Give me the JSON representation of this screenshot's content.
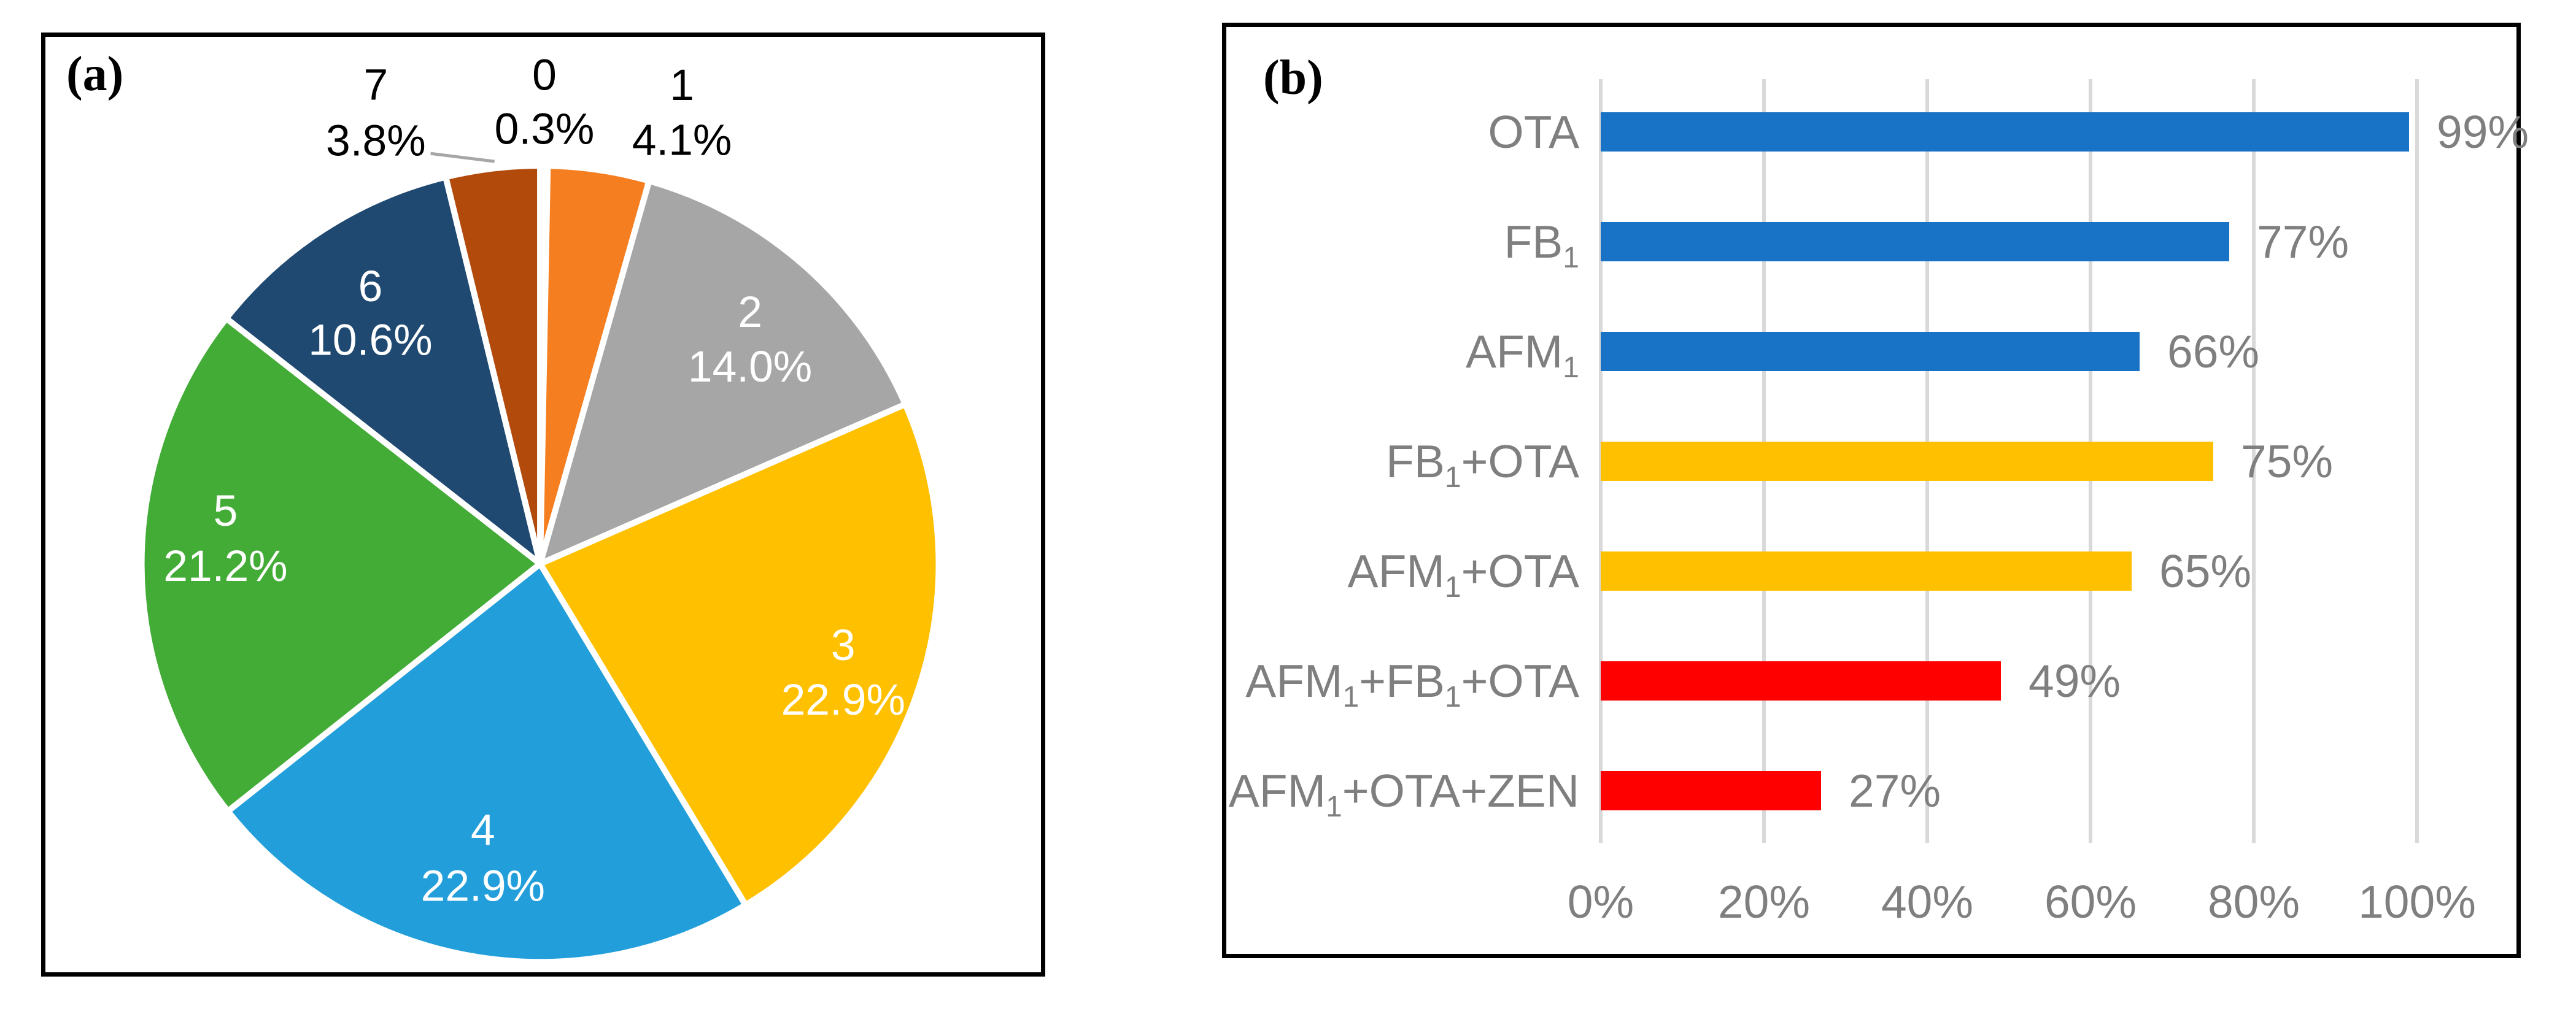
{
  "figure": {
    "panel_a": {
      "tag": "(a)"
    },
    "panel_b": {
      "tag": "(b)"
    }
  },
  "chart_data": [
    {
      "type": "pie",
      "panel": "a",
      "title": "",
      "direction": "clockwise",
      "start_angle_deg": 0,
      "slice_border_color": "#FFFFFF",
      "inside_label_color": "#FFFFFF",
      "outside_label_color": "#000000",
      "leader_line_color": "#A6A6A6",
      "slices": [
        {
          "label": "0",
          "value": 0.3,
          "pct_text": "0.3%",
          "color": "#FFFFFF",
          "label_placement": "outside"
        },
        {
          "label": "1",
          "value": 4.1,
          "pct_text": "4.1%",
          "color": "#F47E20",
          "label_placement": "outside"
        },
        {
          "label": "2",
          "value": 14.0,
          "pct_text": "14.0%",
          "color": "#A6A6A6",
          "label_placement": "inside"
        },
        {
          "label": "3",
          "value": 22.9,
          "pct_text": "22.9%",
          "color": "#FFC000",
          "label_placement": "inside"
        },
        {
          "label": "4",
          "value": 22.9,
          "pct_text": "22.9%",
          "color": "#229FDA",
          "label_placement": "inside"
        },
        {
          "label": "5",
          "value": 21.2,
          "pct_text": "21.2%",
          "color": "#43AC37",
          "label_placement": "inside"
        },
        {
          "label": "6",
          "value": 10.6,
          "pct_text": "10.6%",
          "color": "#1F4971",
          "label_placement": "inside"
        },
        {
          "label": "7",
          "value": 3.8,
          "pct_text": "3.8%",
          "color": "#B24A0C",
          "label_placement": "outside"
        }
      ]
    },
    {
      "type": "bar",
      "panel": "b",
      "title": "",
      "orientation": "horizontal",
      "x_range": [
        0,
        100
      ],
      "x_ticks": [
        "0%",
        "20%",
        "40%",
        "60%",
        "80%",
        "100%"
      ],
      "grid": true,
      "gridline_color": "#D9D9D9",
      "text_color": "#7F7F7F",
      "bars": [
        {
          "category": "OTA",
          "value": 99,
          "value_label": "99%",
          "color": "#1872C5"
        },
        {
          "category": "FB₁",
          "value": 77,
          "value_label": "77%",
          "color": "#1872C5"
        },
        {
          "category": "AFM₁",
          "value": 66,
          "value_label": "66%",
          "color": "#1872C5"
        },
        {
          "category": "FB₁+OTA",
          "value": 75,
          "value_label": "75%",
          "color": "#FFC000"
        },
        {
          "category": "AFM₁+OTA",
          "value": 65,
          "value_label": "65%",
          "color": "#FFC000"
        },
        {
          "category": "AFM₁+FB₁+OTA",
          "value": 49,
          "value_label": "49%",
          "color": "#FF0000"
        },
        {
          "category": "AFM₁+OTA+ZEN",
          "value": 27,
          "value_label": "27%",
          "color": "#FF0000"
        }
      ]
    }
  ]
}
